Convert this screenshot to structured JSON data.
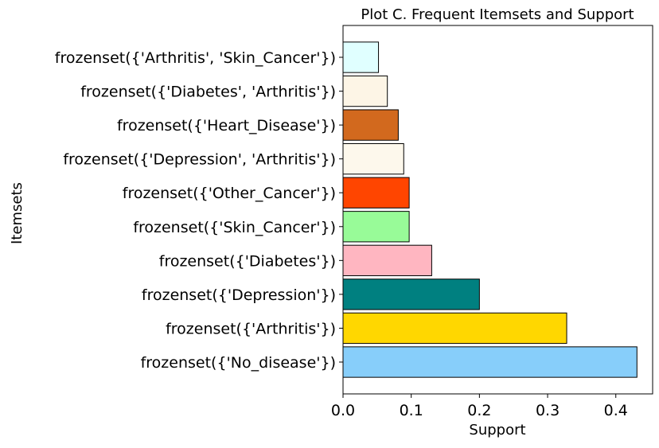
{
  "chart_data": {
    "type": "bar",
    "orientation": "horizontal",
    "title": "Plot C. Frequent Itemsets and Support",
    "xlabel": "Support",
    "ylabel": "Itemsets",
    "xlim": [
      0,
      0.454
    ],
    "xticks": [
      "0.0",
      "0.1",
      "0.2",
      "0.3",
      "0.4"
    ],
    "grid": false,
    "bar_edge_color": "#000000",
    "bars": [
      {
        "label": "frozenset({'No_disease'})",
        "value": 0.431,
        "color": "#87CEFA"
      },
      {
        "label": "frozenset({'Arthritis'})",
        "value": 0.328,
        "color": "#FFD700"
      },
      {
        "label": "frozenset({'Depression'})",
        "value": 0.2,
        "color": "#008080"
      },
      {
        "label": "frozenset({'Diabetes'})",
        "value": 0.13,
        "color": "#FFB6C1"
      },
      {
        "label": "frozenset({'Skin_Cancer'})",
        "value": 0.097,
        "color": "#98FB98"
      },
      {
        "label": "frozenset({'Other_Cancer'})",
        "value": 0.097,
        "color": "#FF4500"
      },
      {
        "label": "frozenset({'Depression', 'Arthritis'})",
        "value": 0.089,
        "color": "#FDF8EC"
      },
      {
        "label": "frozenset({'Heart_Disease'})",
        "value": 0.081,
        "color": "#D2691E"
      },
      {
        "label": "frozenset({'Diabetes', 'Arthritis'})",
        "value": 0.065,
        "color": "#FDF5E6"
      },
      {
        "label": "frozenset({'Arthritis', 'Skin_Cancer'})",
        "value": 0.052,
        "color": "#E0FFFF"
      }
    ]
  }
}
